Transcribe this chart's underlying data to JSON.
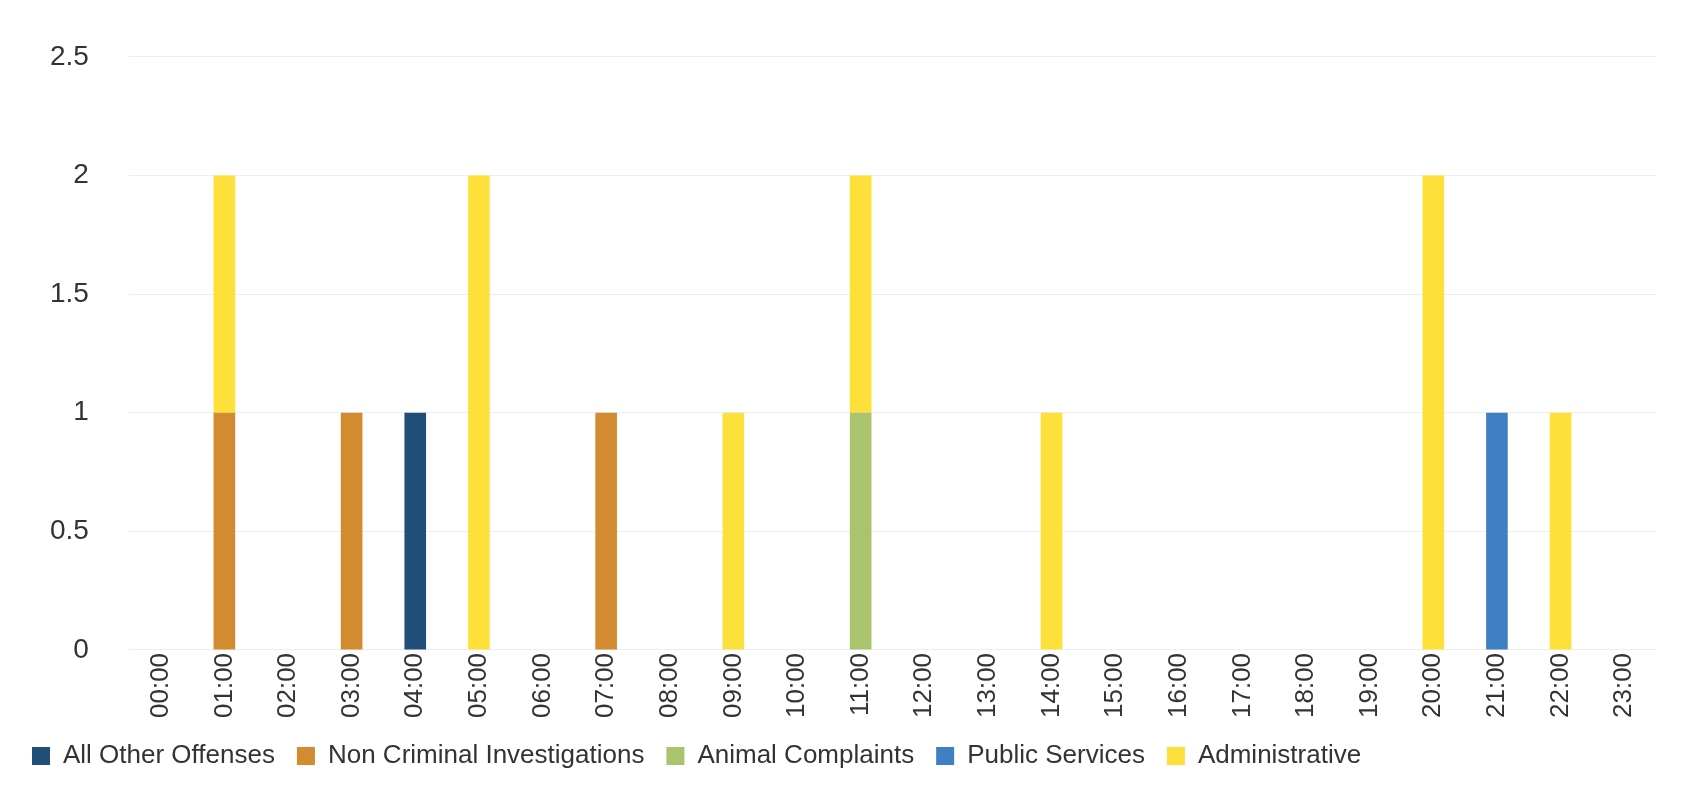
{
  "chart_data": {
    "type": "bar",
    "stacked": true,
    "categories": [
      "00:00",
      "01:00",
      "02:00",
      "03:00",
      "04:00",
      "05:00",
      "06:00",
      "07:00",
      "08:00",
      "09:00",
      "10:00",
      "11:00",
      "12:00",
      "13:00",
      "14:00",
      "15:00",
      "16:00",
      "17:00",
      "18:00",
      "19:00",
      "20:00",
      "21:00",
      "22:00",
      "23:00"
    ],
    "series": [
      {
        "name": "All Other Offenses",
        "color": "#1f4e79",
        "values": [
          null,
          null,
          null,
          null,
          1,
          null,
          null,
          null,
          null,
          null,
          null,
          null,
          null,
          null,
          null,
          null,
          null,
          null,
          null,
          null,
          null,
          null,
          null,
          null
        ]
      },
      {
        "name": "Non Criminal Investigations",
        "color": "#d28b2f",
        "values": [
          null,
          1,
          null,
          1,
          null,
          null,
          null,
          1,
          null,
          null,
          null,
          null,
          null,
          null,
          null,
          null,
          null,
          null,
          null,
          null,
          null,
          null,
          null,
          null
        ]
      },
      {
        "name": "Animal Complaints",
        "color": "#a9c46c",
        "values": [
          null,
          null,
          null,
          null,
          null,
          null,
          null,
          null,
          null,
          null,
          null,
          1,
          null,
          null,
          null,
          null,
          null,
          null,
          null,
          null,
          null,
          null,
          null,
          null
        ]
      },
      {
        "name": "Public Services",
        "color": "#3f7fc4",
        "values": [
          null,
          null,
          null,
          null,
          null,
          null,
          null,
          null,
          null,
          null,
          null,
          null,
          null,
          null,
          null,
          null,
          null,
          null,
          null,
          null,
          null,
          1,
          null,
          null
        ]
      },
      {
        "name": "Administrative",
        "color": "#fde13a",
        "values": [
          null,
          1,
          null,
          null,
          null,
          2,
          null,
          null,
          null,
          1,
          null,
          1,
          null,
          null,
          1,
          null,
          null,
          null,
          null,
          null,
          2,
          null,
          1,
          null
        ]
      }
    ],
    "ylim": [
      0,
      2.5
    ],
    "yticks": [
      0,
      0.5,
      1,
      1.5,
      2,
      2.5
    ],
    "grid": "y",
    "legend": "bottom"
  }
}
